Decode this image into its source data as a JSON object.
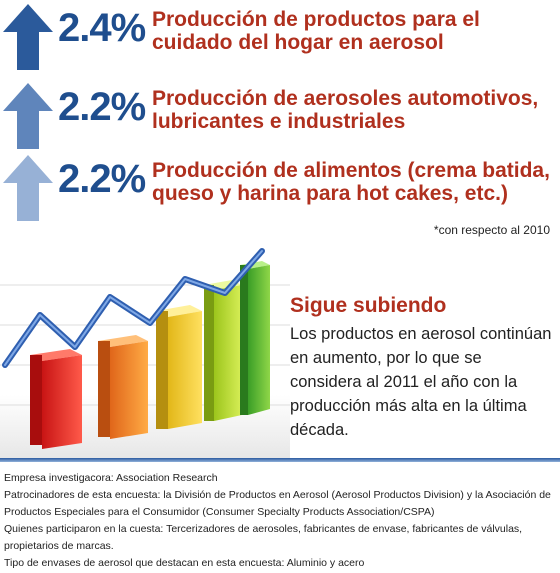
{
  "stats": [
    {
      "value": "2.4%",
      "text": "Producción de productos para el cuidado del hogar en aerosol",
      "arrow_color": "#2b5a9b"
    },
    {
      "value": "2.2%",
      "text": "Producción de aerosoles automotivos, lubricantes e industriales",
      "arrow_color": "#5f85bb"
    },
    {
      "value": "2.2%",
      "text": "Producción de alimentos (crema batida, queso y harina para hot cakes, etc.)",
      "arrow_color": "#97b1d6"
    }
  ],
  "note": "*con respecto al 2010",
  "panel": {
    "title": "Sigue subiendo",
    "body": "Los productos en aerosol continúan en aumento, por lo que se considera al 2011 el año con la producción más alta en la última década."
  },
  "footer": [
    "Empresa investigacora: Association Research",
    "Patrocinadores de esta encuesta: la División de Productos en Aerosol (Aerosol Productos Division) y la Asociación de Productos Especiales para el Consumidor (Consumer Specialty Products Association/CSPA)",
    "Quienes participaron en la cuesta: Tercerizadores de aerosoles, fabricantes de envase, fabricantes de válvulas, propietarios de marcas.",
    "Tipo de envases de aerosol que destacan en esta encuesta: Aluminio y acero"
  ]
}
